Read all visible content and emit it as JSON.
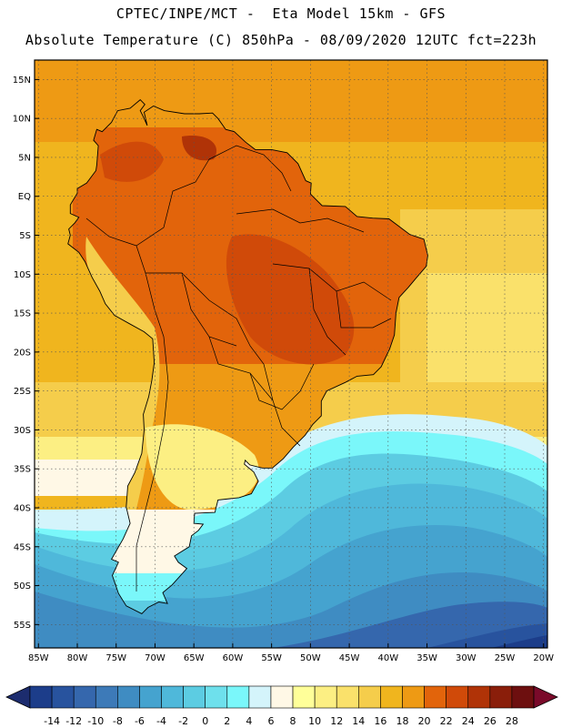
{
  "header": {
    "line1": "CPTEC/INPE/MCT -  Eta Model 15km - GFS",
    "line2": "Absolute Temperature (C) 850hPa - 08/09/2020 12UTC fct=223h"
  },
  "map": {
    "region": "South America",
    "lat_labels": [
      "15N",
      "10N",
      "5N",
      "EQ",
      "5S",
      "10S",
      "15S",
      "20S",
      "25S",
      "30S",
      "35S",
      "40S",
      "45S",
      "50S",
      "55S"
    ],
    "lon_labels": [
      "85W",
      "80W",
      "75W",
      "70W",
      "65W",
      "60W",
      "55W",
      "50W",
      "45W",
      "40W",
      "35W",
      "30W",
      "25W",
      "20W"
    ],
    "lat_range": [
      17.5,
      -58
    ],
    "lon_range": [
      -85.5,
      -19.5
    ]
  },
  "colorbar": {
    "labels": [
      "-14",
      "-12",
      "-10",
      "-8",
      "-6",
      "-4",
      "-2",
      "0",
      "2",
      "4",
      "6",
      "8",
      "10",
      "12",
      "14",
      "16",
      "18",
      "20",
      "22",
      "24",
      "26",
      "28"
    ],
    "colors": [
      "#1c3d8a",
      "#28539e",
      "#3567ad",
      "#3d7ab8",
      "#3f8cc2",
      "#45a3cf",
      "#4fb8da",
      "#5ccce2",
      "#6ee0ec",
      "#7af7fa",
      "#d4f4fb",
      "#fff8e6",
      "#ffff99",
      "#fcef83",
      "#fae16b",
      "#f5cd4b",
      "#f0b51e",
      "#ee9a14",
      "#e2640b",
      "#d04a09",
      "#b03307",
      "#8a1e0a",
      "#6d0f0f"
    ],
    "low_arrow_color": "#1c2c6e",
    "high_arrow_color": "#7a0a2a"
  }
}
